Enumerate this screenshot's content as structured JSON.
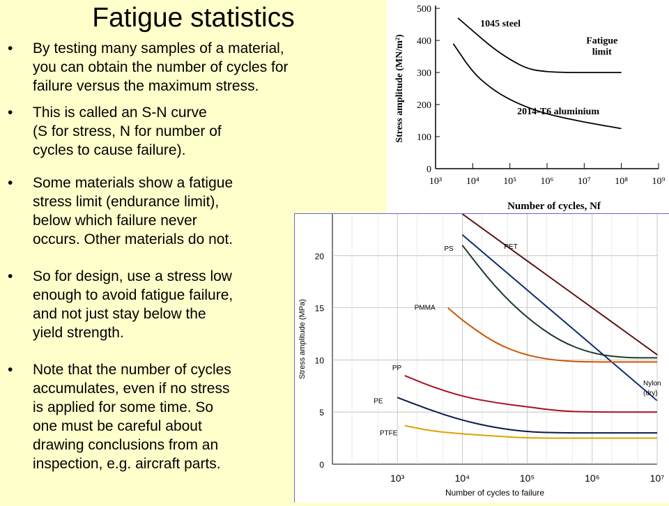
{
  "slide": {
    "title": "Fatigue statistics",
    "bullets": [
      "By testing many samples of a material,\nyou can obtain the number of cycles for\nfailure versus the maximum stress.",
      "This is called an S-N curve\n(S for stress, N for number of\ncycles to cause failure).",
      "Some materials show a fatigue\nstress limit (endurance limit),\nbelow which failure never\noccurs.  Other materials do not.",
      "So for design, use a stress low\nenough to avoid fatigue failure,\nand not just stay below the\nyield strength.",
      "Note that the number of cycles\naccumulates, even if no stress\nis applied for some time.  So\none must be careful about\ndrawing conclusions from an\ninspection, e.g. aircraft parts."
    ],
    "bullet_char": "•"
  },
  "chart_data": [
    {
      "type": "line",
      "xlabel": "Number of cycles, Nf",
      "ylabel": "Stress amplitude (MN/m²)",
      "xscale": "log",
      "xlim": [
        1000,
        1000000000
      ],
      "ylim": [
        0,
        500
      ],
      "xticks": [
        "10³",
        "10⁴",
        "10⁵",
        "10⁶",
        "10⁷",
        "10⁸",
        "10⁹"
      ],
      "yticks": [
        "0",
        "100",
        "200",
        "300",
        "400",
        "500"
      ],
      "annotations": [
        "Fatigue\nlimit"
      ],
      "series": [
        {
          "name": "1045 steel",
          "x": [
            4000,
            10000,
            31600,
            100000,
            316000,
            1000000,
            3160000,
            10000000,
            100000000
          ],
          "y": [
            470,
            430,
            380,
            340,
            310,
            302,
            300,
            300,
            300
          ]
        },
        {
          "name": "2014-T6 aluminium",
          "x": [
            3000,
            10000,
            31600,
            100000,
            316000,
            1000000,
            10000000,
            100000000
          ],
          "y": [
            390,
            300,
            250,
            215,
            190,
            170,
            145,
            125
          ]
        }
      ]
    },
    {
      "type": "line",
      "xlabel": "Number of cycles to failure",
      "ylabel": "Stress amplitude (MPa)",
      "xscale": "log",
      "xlim": [
        100,
        10000000
      ],
      "ylim": [
        0,
        24
      ],
      "xticks": [
        "10³",
        "10⁴",
        "10⁵",
        "10⁶",
        "10⁷"
      ],
      "yticks": [
        "0",
        "5",
        "10",
        "15",
        "20"
      ],
      "series": [
        {
          "name": "PET",
          "x": [
            10000,
            10000000
          ],
          "y": [
            24,
            10.5
          ]
        },
        {
          "name": "PS",
          "x": [
            10000,
            31600,
            100000,
            316000,
            1000000,
            3160000,
            10000000
          ],
          "y": [
            21,
            17,
            14,
            11.8,
            10.6,
            10.2,
            10.2
          ]
        },
        {
          "name": "Nylon\n(dry)",
          "x": [
            10000,
            10000000
          ],
          "y": [
            22,
            6.1
          ]
        },
        {
          "name": "PMMA",
          "x": [
            6000,
            10000,
            31600,
            100000,
            316000,
            1000000,
            10000000
          ],
          "y": [
            15,
            13.8,
            11.6,
            10.4,
            9.9,
            9.8,
            9.8
          ]
        },
        {
          "name": "PP",
          "x": [
            1300,
            3160,
            10000,
            31600,
            100000,
            316000,
            1000000,
            10000000
          ],
          "y": [
            8.5,
            7.5,
            6.5,
            5.9,
            5.5,
            5.1,
            5.0,
            5.0
          ]
        },
        {
          "name": "PE",
          "x": [
            1000,
            3160,
            10000,
            31600,
            100000,
            316000,
            1000000,
            10000000
          ],
          "y": [
            6.4,
            5.2,
            4.2,
            3.5,
            3.1,
            3.0,
            3.0,
            3.0
          ]
        },
        {
          "name": "PTFE",
          "x": [
            1300,
            3160,
            10000,
            31600,
            100000,
            1000000,
            10000000
          ],
          "y": [
            3.7,
            3.2,
            2.9,
            2.7,
            2.5,
            2.5,
            2.5
          ]
        }
      ],
      "colors": {
        "PET": "#5a1010",
        "PS": "#1e3a2a",
        "Nylon\n(dry)": "#0a2a6e",
        "PMMA": "#cc5500",
        "PP": "#aa1020",
        "PE": "#0a1a4a",
        "PTFE": "#e0a000"
      }
    }
  ]
}
